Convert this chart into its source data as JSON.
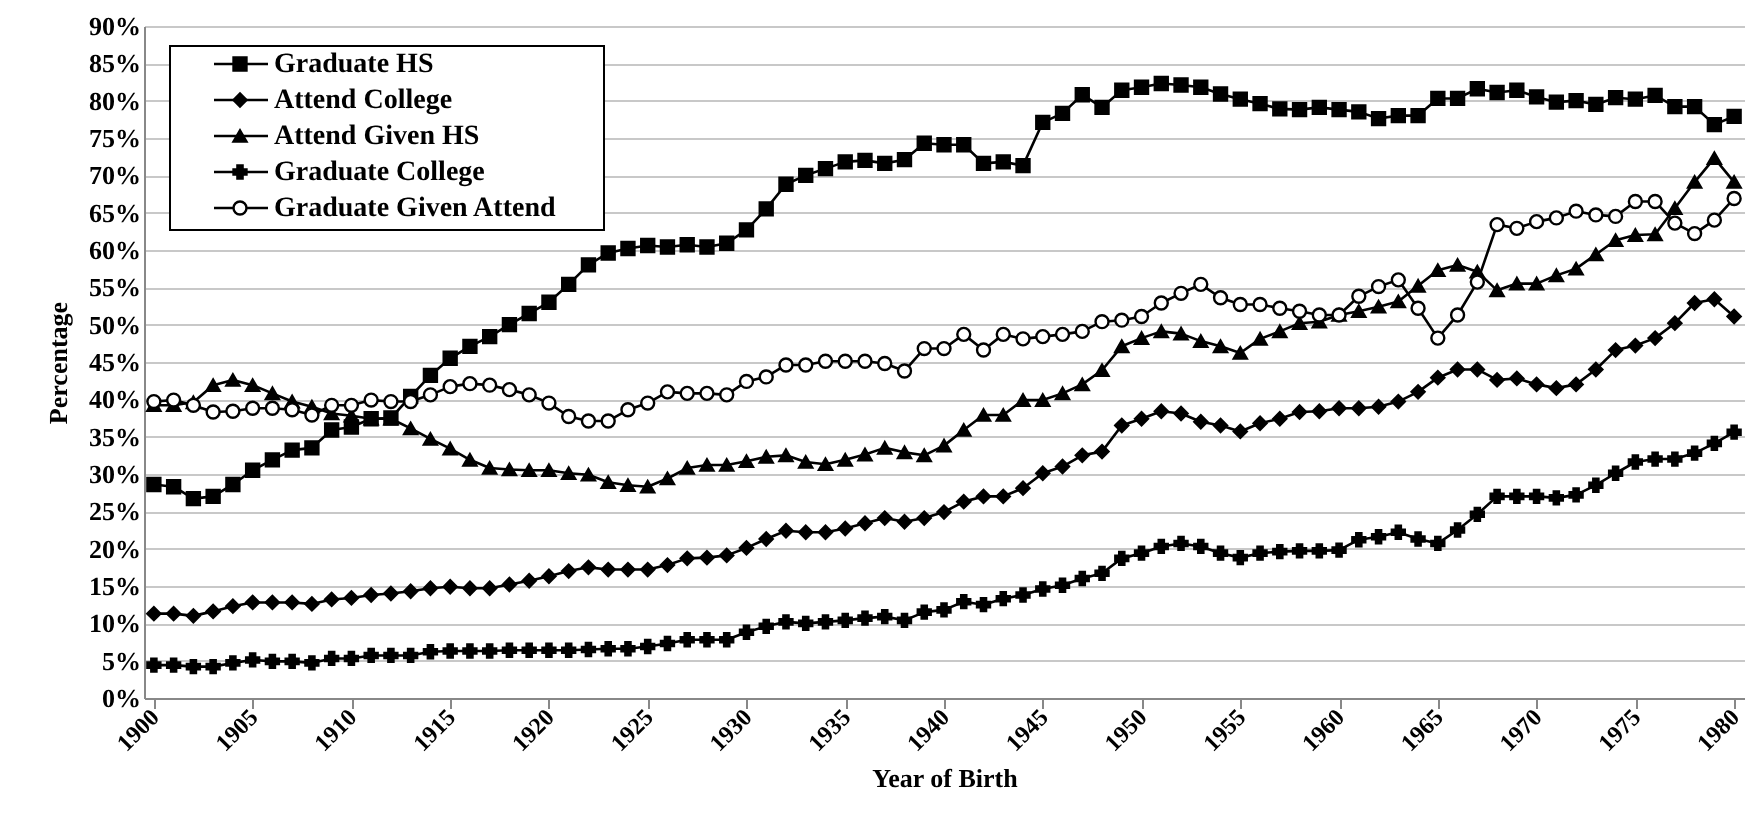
{
  "chart_data": {
    "type": "line",
    "xlabel": "Year of Birth",
    "ylabel": "Percentage",
    "x": [
      1900,
      1901,
      1902,
      1903,
      1904,
      1905,
      1906,
      1907,
      1908,
      1909,
      1910,
      1911,
      1912,
      1913,
      1914,
      1915,
      1916,
      1917,
      1918,
      1919,
      1920,
      1921,
      1922,
      1923,
      1924,
      1925,
      1926,
      1927,
      1928,
      1929,
      1930,
      1931,
      1932,
      1933,
      1934,
      1935,
      1936,
      1937,
      1938,
      1939,
      1940,
      1941,
      1942,
      1943,
      1944,
      1945,
      1946,
      1947,
      1948,
      1949,
      1950,
      1951,
      1952,
      1953,
      1954,
      1955,
      1956,
      1957,
      1958,
      1959,
      1960,
      1961,
      1962,
      1963,
      1964,
      1965,
      1966,
      1967,
      1968,
      1969,
      1970,
      1971,
      1972,
      1973,
      1974,
      1975,
      1976,
      1977,
      1978,
      1979,
      1980
    ],
    "xlim": [
      1899.5,
      1980.5
    ],
    "xticks": [
      1900,
      1905,
      1910,
      1915,
      1920,
      1925,
      1930,
      1935,
      1940,
      1945,
      1950,
      1955,
      1960,
      1965,
      1970,
      1975,
      1980
    ],
    "ylim": [
      0,
      90
    ],
    "yticks": [
      {
        "value": 0,
        "label": "0%"
      },
      {
        "value": 5,
        "label": "5%"
      },
      {
        "value": 10,
        "label": "10%"
      },
      {
        "value": 15,
        "label": "15%"
      },
      {
        "value": 20,
        "label": "20%"
      },
      {
        "value": 25,
        "label": "25%"
      },
      {
        "value": 30,
        "label": "30%"
      },
      {
        "value": 35,
        "label": "35%"
      },
      {
        "value": 40,
        "label": "40%"
      },
      {
        "value": 45,
        "label": "45%"
      },
      {
        "value": 50,
        "label": "50%"
      },
      {
        "value": 55,
        "label": "55%"
      },
      {
        "value": 60,
        "label": "60%"
      },
      {
        "value": 65,
        "label": "65%"
      },
      {
        "value": 70,
        "label": "70%"
      },
      {
        "value": 75,
        "label": "75%"
      },
      {
        "value": 80,
        "label": "80%"
      },
      {
        "value": 85,
        "label": "85%"
      },
      {
        "value": 90,
        "label": "90%"
      }
    ],
    "grid": "y",
    "legend": "top left",
    "series": [
      {
        "name": "Graduate HS",
        "color": "#000000",
        "marker": "square",
        "values": [
          28.6,
          28.3,
          26.7,
          27.0,
          28.6,
          30.5,
          31.9,
          33.2,
          33.5,
          35.9,
          36.3,
          37.4,
          37.5,
          40.4,
          43.2,
          45.5,
          47.1,
          48.4,
          50.0,
          51.5,
          53.0,
          55.4,
          58.0,
          59.6,
          60.2,
          60.6,
          60.4,
          60.7,
          60.4,
          60.9,
          62.7,
          65.5,
          68.8,
          70.0,
          70.9,
          71.8,
          72.0,
          71.6,
          72.1,
          74.3,
          74.1,
          74.1,
          71.6,
          71.8,
          71.3,
          77.1,
          78.3,
          80.8,
          79.1,
          81.4,
          81.8,
          82.3,
          82.1,
          81.8,
          80.9,
          80.2,
          79.6,
          78.9,
          78.8,
          79.1,
          78.8,
          78.5,
          77.6,
          78.0,
          78.0,
          80.3,
          80.3,
          81.6,
          81.1,
          81.4,
          80.5,
          79.8,
          80.0,
          79.5,
          80.4,
          80.2,
          80.7,
          79.2,
          79.2,
          76.8,
          77.9
        ]
      },
      {
        "name": "Attend College",
        "color": "#000000",
        "marker": "diamond",
        "values": [
          11.3,
          11.3,
          11.0,
          11.6,
          12.3,
          12.8,
          12.8,
          12.8,
          12.6,
          13.2,
          13.4,
          13.8,
          14.0,
          14.3,
          14.7,
          14.9,
          14.7,
          14.7,
          15.2,
          15.7,
          16.3,
          17.0,
          17.5,
          17.2,
          17.2,
          17.2,
          17.8,
          18.7,
          18.8,
          19.1,
          20.1,
          21.3,
          22.4,
          22.2,
          22.2,
          22.7,
          23.4,
          24.1,
          23.6,
          24.1,
          24.9,
          26.3,
          27.0,
          27.0,
          28.1,
          30.1,
          31.0,
          32.5,
          33.0,
          36.5,
          37.4,
          38.4,
          38.1,
          37.0,
          36.5,
          35.7,
          36.8,
          37.4,
          38.3,
          38.4,
          38.8,
          38.8,
          39.0,
          39.7,
          41.0,
          42.9,
          44.0,
          44.0,
          42.6,
          42.8,
          42.0,
          41.5,
          42.0,
          44.0,
          46.6,
          47.2,
          48.2,
          50.2,
          52.9,
          53.4,
          51.1
        ]
      },
      {
        "name": "Attend Given HS",
        "color": "#000000",
        "marker": "triangle",
        "values": [
          39.2,
          39.2,
          39.6,
          41.9,
          42.6,
          41.9,
          40.8,
          39.7,
          39.0,
          38.1,
          37.8,
          37.4,
          37.4,
          36.1,
          34.7,
          33.4,
          31.9,
          30.8,
          30.6,
          30.5,
          30.5,
          30.1,
          29.9,
          28.9,
          28.5,
          28.3,
          29.4,
          30.8,
          31.2,
          31.2,
          31.7,
          32.3,
          32.5,
          31.6,
          31.3,
          31.9,
          32.6,
          33.5,
          32.9,
          32.5,
          33.8,
          35.9,
          37.9,
          37.9,
          39.9,
          39.9,
          40.8,
          42.0,
          43.9,
          47.1,
          48.2,
          49.1,
          48.8,
          47.8,
          47.1,
          46.2,
          48.1,
          49.1,
          50.2,
          50.4,
          51.3,
          51.8,
          52.4,
          53.1,
          55.2,
          57.3,
          58.0,
          57.1,
          54.6,
          55.5,
          55.5,
          56.6,
          57.5,
          59.4,
          61.3,
          62.0,
          62.1,
          65.6,
          69.1,
          72.3,
          69.1
        ]
      },
      {
        "name": "Graduate College",
        "color": "#000000",
        "marker": "cross",
        "values": [
          4.4,
          4.4,
          4.2,
          4.2,
          4.7,
          5.1,
          4.9,
          4.9,
          4.7,
          5.3,
          5.3,
          5.7,
          5.7,
          5.7,
          6.2,
          6.3,
          6.3,
          6.3,
          6.4,
          6.4,
          6.4,
          6.4,
          6.5,
          6.6,
          6.6,
          6.9,
          7.3,
          7.8,
          7.8,
          7.8,
          8.8,
          9.6,
          10.2,
          10.0,
          10.2,
          10.4,
          10.7,
          10.9,
          10.4,
          11.5,
          11.8,
          12.9,
          12.5,
          13.3,
          13.8,
          14.6,
          15.1,
          16.0,
          16.7,
          18.7,
          19.4,
          20.3,
          20.7,
          20.3,
          19.4,
          18.8,
          19.4,
          19.6,
          19.7,
          19.7,
          19.8,
          21.2,
          21.6,
          22.2,
          21.3,
          20.7,
          22.5,
          24.6,
          27.0,
          27.0,
          27.0,
          26.8,
          27.2,
          28.5,
          30.1,
          31.6,
          32.0,
          32.0,
          32.8,
          34.1,
          35.6
        ]
      },
      {
        "name": "Graduate Given  Attend",
        "color": "#000000",
        "marker": "circle",
        "values": [
          39.7,
          39.9,
          39.2,
          38.3,
          38.4,
          38.8,
          38.8,
          38.6,
          37.9,
          39.2,
          39.2,
          39.9,
          39.7,
          39.7,
          40.6,
          41.7,
          42.1,
          41.9,
          41.3,
          40.6,
          39.5,
          37.7,
          37.1,
          37.1,
          38.6,
          39.5,
          41.0,
          40.8,
          40.8,
          40.6,
          42.4,
          43.0,
          44.6,
          44.6,
          45.1,
          45.1,
          45.1,
          44.8,
          43.8,
          46.8,
          46.8,
          48.7,
          46.6,
          48.7,
          48.1,
          48.4,
          48.7,
          49.1,
          50.4,
          50.6,
          51.1,
          52.9,
          54.2,
          55.4,
          53.6,
          52.7,
          52.7,
          52.2,
          51.8,
          51.3,
          51.3,
          53.8,
          55.1,
          56.0,
          52.2,
          48.2,
          51.3,
          55.7,
          63.4,
          62.9,
          63.8,
          64.3,
          65.2,
          64.7,
          64.5,
          66.5,
          66.5,
          63.6,
          62.2,
          64.0,
          66.9
        ]
      }
    ]
  }
}
